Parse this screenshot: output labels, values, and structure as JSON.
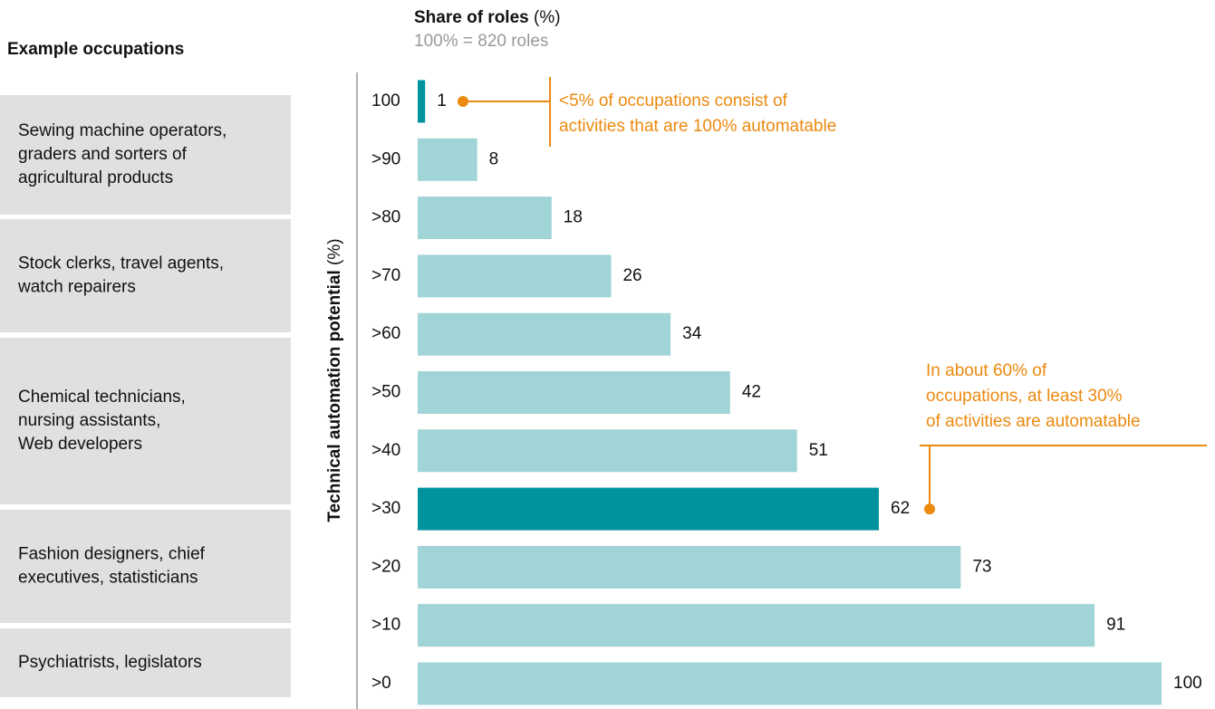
{
  "chart_data": {
    "type": "bar",
    "orientation": "horizontal",
    "title": "Share of roles",
    "title_unit": "(%)",
    "subtitle": "100% = 820 roles",
    "y_label": "Technical automation potential",
    "y_label_unit": "(%)",
    "categories": [
      "100",
      ">90",
      ">80",
      ">70",
      ">60",
      ">50",
      ">40",
      ">30",
      ">20",
      ">10",
      ">0"
    ],
    "values": [
      1,
      8,
      18,
      26,
      34,
      42,
      51,
      62,
      73,
      91,
      100
    ],
    "colors": [
      "#00939e",
      "#a0d4d7",
      "#a0d4d7",
      "#a0d4d7",
      "#a0d4d7",
      "#a0d4d7",
      "#a0d4d7",
      "#00939e",
      "#a0d4d7",
      "#a0d4d7",
      "#a0d4d7"
    ],
    "annotation_color": "#ec8a0f",
    "annotations": [
      {
        "lines": [
          "<5% of occupations consist of",
          "activities that are 100% automatable"
        ]
      },
      {
        "lines": [
          "In about 60% of",
          "occupations, at least 30%",
          "of activities are automatable"
        ]
      }
    ],
    "occupations_heading": "Example occupations",
    "occupation_groups": [
      [
        "Sewing machine operators,",
        "graders and sorters of",
        "agricultural products"
      ],
      [
        "Stock clerks, travel agents,",
        "watch repairers"
      ],
      [
        "Chemical technicians,",
        "nursing assistants,",
        "Web developers"
      ],
      [
        "Fashion designers, chief",
        "executives, statisticians"
      ],
      [
        "Psychiatrists, legislators"
      ]
    ]
  }
}
